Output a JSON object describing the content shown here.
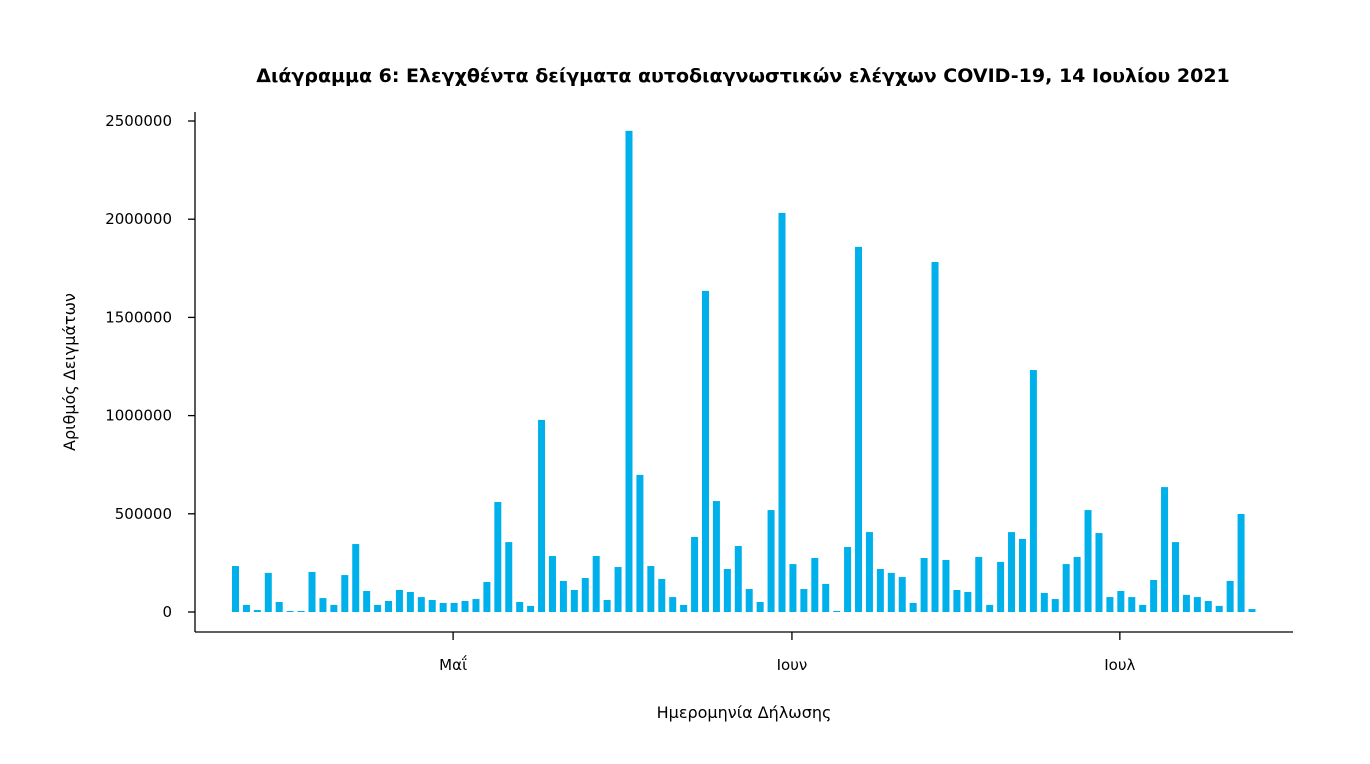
{
  "chart_data": {
    "type": "bar",
    "title": "Διάγραμμα 6: Ελεγχθέντα δείγματα αυτοδιαγνωστικών ελέγχων COVID-19, 14 Ιουλίου 2021",
    "xlabel": "Ημερομηνία Δήλωσης",
    "ylabel": "Αριθμός Δειγμάτων",
    "ylim": [
      0,
      2500000
    ],
    "yticks": [
      0,
      500000,
      1000000,
      1500000,
      2000000,
      2500000
    ],
    "ytick_labels": [
      "0",
      "500000",
      "1000000",
      "1500000",
      "2000000",
      "2500000"
    ],
    "x_start": "2021-04-11",
    "x_end": "2021-07-13",
    "xticks": [
      {
        "label": "Μαΐ",
        "index": 20
      },
      {
        "label": "Ιουν",
        "index": 51
      },
      {
        "label": "Ιουλ",
        "index": 81
      }
    ],
    "grid": false,
    "color": "#00b0eb",
    "values": [
      234000,
      36000,
      10000,
      199000,
      51000,
      5000,
      2000,
      204000,
      71000,
      36000,
      188000,
      346000,
      107000,
      36000,
      56000,
      112000,
      102000,
      76000,
      61000,
      46000,
      46000,
      56000,
      66000,
      153000,
      560000,
      356000,
      51000,
      31000,
      978000,
      285000,
      158000,
      112000,
      173000,
      285000,
      61000,
      229000,
      2450000,
      698000,
      234000,
      168000,
      76000,
      36000,
      382000,
      1635000,
      565000,
      219000,
      336000,
      117000,
      51000,
      519000,
      2032000,
      244000,
      117000,
      275000,
      143000,
      1000,
      331000,
      1859000,
      407000,
      219000,
      199000,
      178000,
      46000,
      275000,
      1782000,
      265000,
      112000,
      102000,
      280000,
      36000,
      255000,
      407000,
      372000,
      1232000,
      97000,
      66000,
      244000,
      280000,
      519000,
      402000,
      76000,
      107000,
      76000,
      36000,
      163000,
      636000,
      356000,
      87000,
      76000,
      56000,
      31000,
      158000,
      499000,
      15000
    ]
  }
}
